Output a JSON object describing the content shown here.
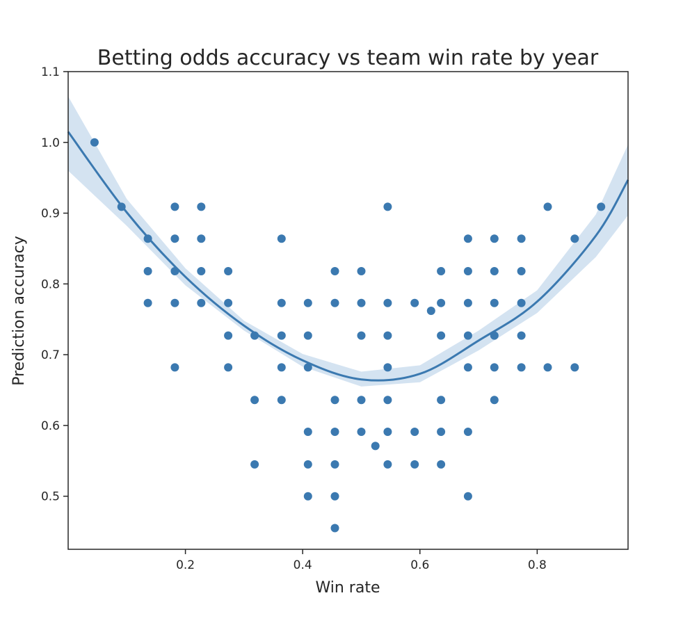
{
  "chart_data": {
    "type": "scatter",
    "title": "Betting odds accuracy vs team win rate by year",
    "xlabel": "Win rate",
    "ylabel": "Prediction accuracy",
    "xlim": [
      0.0,
      0.955
    ],
    "ylim": [
      0.425,
      1.1
    ],
    "xticks": [
      0.2,
      0.4,
      0.6,
      0.8
    ],
    "xtick_labels": [
      "0.2",
      "0.4",
      "0.6",
      "0.8"
    ],
    "yticks": [
      0.5,
      0.6,
      0.7,
      0.8,
      0.9,
      1.0,
      1.1
    ],
    "ytick_labels": [
      "0.5",
      "0.6",
      "0.7",
      "0.8",
      "0.9",
      "1.0",
      "1.1"
    ],
    "grid": false,
    "colors": {
      "points": "#3b79b0",
      "line": "#3b79b0",
      "band": "#c6d9ec",
      "axes": "#262626"
    },
    "series": [
      {
        "points": [
          [
            0.045,
            1.0
          ],
          [
            0.091,
            0.909
          ],
          [
            0.136,
            0.864
          ],
          [
            0.136,
            0.818
          ],
          [
            0.136,
            0.773
          ],
          [
            0.182,
            0.909
          ],
          [
            0.182,
            0.864
          ],
          [
            0.182,
            0.818
          ],
          [
            0.182,
            0.773
          ],
          [
            0.182,
            0.682
          ],
          [
            0.227,
            0.909
          ],
          [
            0.227,
            0.864
          ],
          [
            0.227,
            0.818
          ],
          [
            0.227,
            0.773
          ],
          [
            0.273,
            0.818
          ],
          [
            0.273,
            0.773
          ],
          [
            0.273,
            0.727
          ],
          [
            0.273,
            0.682
          ],
          [
            0.318,
            0.727
          ],
          [
            0.318,
            0.636
          ],
          [
            0.318,
            0.545
          ],
          [
            0.364,
            0.864
          ],
          [
            0.364,
            0.773
          ],
          [
            0.364,
            0.727
          ],
          [
            0.364,
            0.682
          ],
          [
            0.364,
            0.636
          ],
          [
            0.409,
            0.773
          ],
          [
            0.409,
            0.727
          ],
          [
            0.409,
            0.682
          ],
          [
            0.409,
            0.591
          ],
          [
            0.409,
            0.545
          ],
          [
            0.409,
            0.5
          ],
          [
            0.455,
            0.818
          ],
          [
            0.455,
            0.773
          ],
          [
            0.455,
            0.636
          ],
          [
            0.455,
            0.591
          ],
          [
            0.455,
            0.545
          ],
          [
            0.455,
            0.5
          ],
          [
            0.455,
            0.455
          ],
          [
            0.5,
            0.818
          ],
          [
            0.5,
            0.773
          ],
          [
            0.5,
            0.727
          ],
          [
            0.5,
            0.636
          ],
          [
            0.5,
            0.591
          ],
          [
            0.524,
            0.571
          ],
          [
            0.545,
            0.909
          ],
          [
            0.545,
            0.773
          ],
          [
            0.545,
            0.727
          ],
          [
            0.545,
            0.682
          ],
          [
            0.545,
            0.636
          ],
          [
            0.545,
            0.591
          ],
          [
            0.545,
            0.545
          ],
          [
            0.591,
            0.773
          ],
          [
            0.591,
            0.591
          ],
          [
            0.591,
            0.545
          ],
          [
            0.619,
            0.762
          ],
          [
            0.636,
            0.818
          ],
          [
            0.636,
            0.773
          ],
          [
            0.636,
            0.727
          ],
          [
            0.636,
            0.636
          ],
          [
            0.636,
            0.591
          ],
          [
            0.636,
            0.545
          ],
          [
            0.682,
            0.864
          ],
          [
            0.682,
            0.818
          ],
          [
            0.682,
            0.773
          ],
          [
            0.682,
            0.727
          ],
          [
            0.682,
            0.682
          ],
          [
            0.682,
            0.591
          ],
          [
            0.682,
            0.5
          ],
          [
            0.727,
            0.864
          ],
          [
            0.727,
            0.818
          ],
          [
            0.727,
            0.773
          ],
          [
            0.727,
            0.727
          ],
          [
            0.727,
            0.682
          ],
          [
            0.727,
            0.636
          ],
          [
            0.773,
            0.864
          ],
          [
            0.773,
            0.818
          ],
          [
            0.773,
            0.773
          ],
          [
            0.773,
            0.727
          ],
          [
            0.773,
            0.682
          ],
          [
            0.818,
            0.909
          ],
          [
            0.818,
            0.682
          ],
          [
            0.864,
            0.864
          ],
          [
            0.864,
            0.682
          ],
          [
            0.909,
            0.909
          ]
        ]
      }
    ],
    "fit": {
      "type": "quadratic",
      "x": [
        0.0,
        0.1,
        0.2,
        0.3,
        0.4,
        0.5,
        0.6,
        0.7,
        0.8,
        0.9,
        0.955
      ],
      "y": [
        1.015,
        0.901,
        0.81,
        0.741,
        0.692,
        0.665,
        0.673,
        0.72,
        0.775,
        0.868,
        0.947
      ],
      "ci_lower": [
        0.96,
        0.882,
        0.798,
        0.734,
        0.683,
        0.655,
        0.661,
        0.706,
        0.759,
        0.838,
        0.897
      ],
      "ci_upper": [
        1.065,
        0.92,
        0.822,
        0.748,
        0.701,
        0.676,
        0.685,
        0.734,
        0.791,
        0.898,
        0.997
      ]
    }
  }
}
